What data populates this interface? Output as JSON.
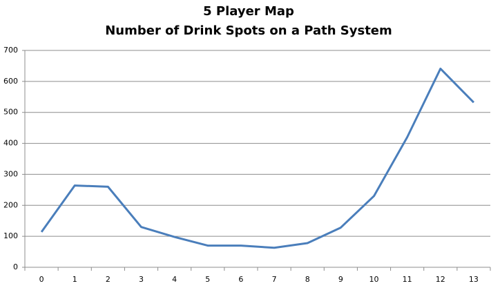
{
  "chart_data": {
    "type": "line",
    "title": "5 Player Map",
    "subtitle": "Number of Drink Spots on a Path System",
    "categories": [
      "0",
      "1",
      "2",
      "3",
      "4",
      "5",
      "6",
      "7",
      "8",
      "9",
      "10",
      "11",
      "12",
      "13"
    ],
    "series": [
      {
        "color": "#4a7ebb",
        "values": [
          114,
          264,
          260,
          130,
          98,
          70,
          70,
          63,
          78,
          128,
          230,
          420,
          641,
          532
        ]
      }
    ],
    "ylim": [
      0,
      700
    ],
    "yticks": [
      0,
      100,
      200,
      300,
      400,
      500,
      600,
      700
    ],
    "grid": true
  }
}
